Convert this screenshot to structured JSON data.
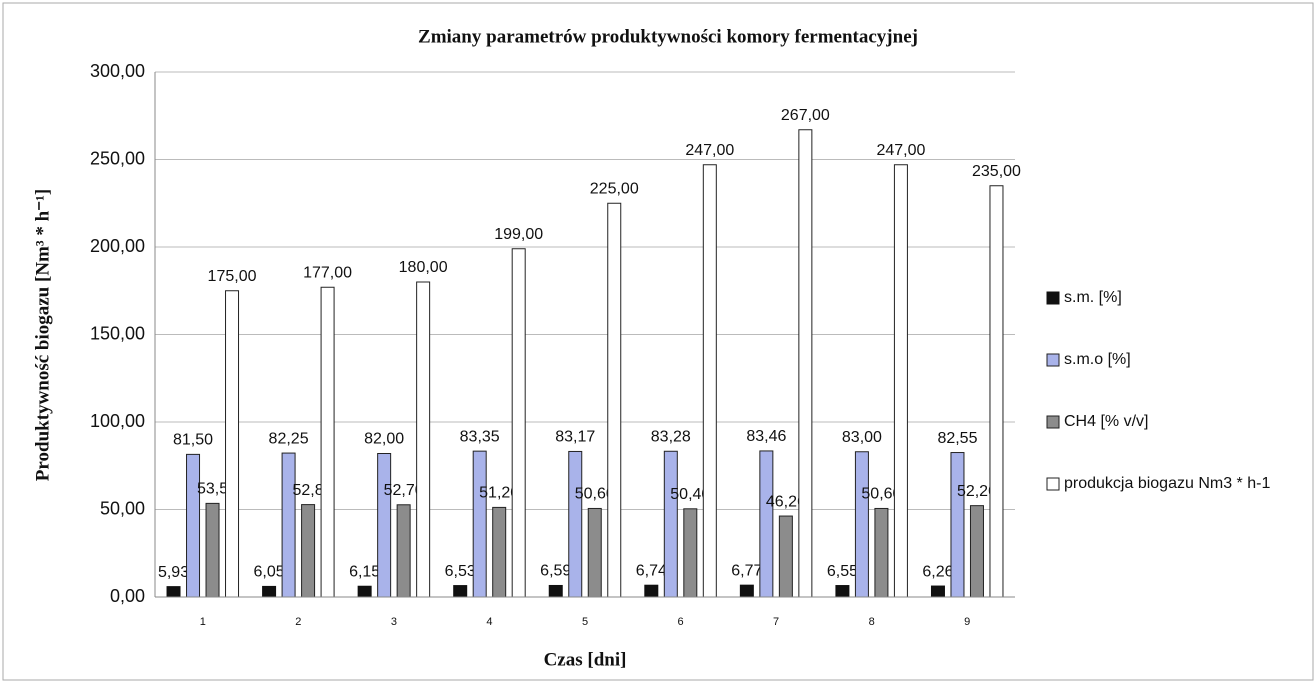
{
  "chart_data": {
    "type": "bar",
    "title": "Zmiany parametrów produktywności komory fermentacyjnej",
    "x_label": "Czas [dni]",
    "y_label": "Produktywność biogazu [Nm³ * h⁻¹]",
    "categories": [
      "1",
      "2",
      "3",
      "4",
      "5",
      "6",
      "7",
      "8",
      "9"
    ],
    "series": [
      {
        "name": "s.m. [%]",
        "color": "#111111",
        "values": [
          5.93,
          6.05,
          6.15,
          6.53,
          6.59,
          6.74,
          6.77,
          6.55,
          6.26
        ],
        "value_labels": [
          "5,93",
          "6,05",
          "6,15",
          "6,53",
          "6,59",
          "6,74",
          "6,77",
          "6,55",
          "6,26"
        ]
      },
      {
        "name": "s.m.o [%]",
        "color": "#a9b3ea",
        "values": [
          81.5,
          82.25,
          82.0,
          83.35,
          83.17,
          83.28,
          83.46,
          83.0,
          82.55
        ],
        "value_labels": [
          "81,50",
          "82,25",
          "82,00",
          "83,35",
          "83,17",
          "83,28",
          "83,46",
          "83,00",
          "82,55"
        ]
      },
      {
        "name": "CH4 [% v/v]",
        "color": "#8c8c8c",
        "values": [
          53.5,
          52.8,
          52.7,
          51.2,
          50.6,
          50.4,
          46.26,
          50.6,
          52.2
        ],
        "value_labels": [
          "53,5",
          "52,8",
          "52,70",
          "51,20",
          "50,60",
          "50,40",
          "46,26",
          "50,60",
          "52,20"
        ]
      },
      {
        "name": "produkcja biogazu Nm3 * h-1",
        "color": "#ffffff",
        "values": [
          175,
          177,
          180,
          199,
          225,
          247,
          267,
          247,
          235
        ],
        "value_labels": [
          "175,00",
          "177,00",
          "180,00",
          "199,00",
          "225,00",
          "247,00",
          "267,00",
          "247,00",
          "235,00"
        ]
      }
    ],
    "ylim": [
      0,
      300
    ],
    "yticks": [
      {
        "value": 0,
        "label": "0,00"
      },
      {
        "value": 50,
        "label": "50,00"
      },
      {
        "value": 100,
        "label": "100,00"
      },
      {
        "value": 150,
        "label": "150,00"
      },
      {
        "value": 200,
        "label": "200,00"
      },
      {
        "value": 250,
        "label": "250,00"
      },
      {
        "value": 300,
        "label": "300,00"
      }
    ],
    "grid": true,
    "legend": "right"
  }
}
